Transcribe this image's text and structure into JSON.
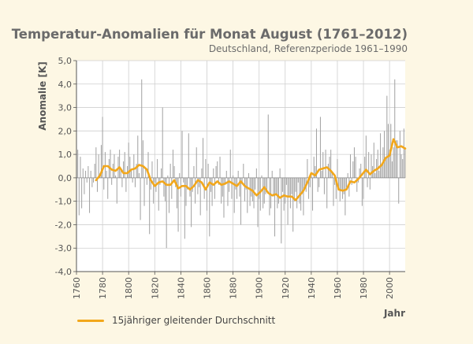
{
  "chart_data": {
    "type": "bar",
    "title": "Temperatur-Anomalien für Monat August (1761–2012)",
    "subtitle": "Deutschland, Referenzperiode 1961–1990",
    "ylabel": "Anomalie [K]",
    "xlabel": "Jahr",
    "ylim": [
      -4.0,
      5.0
    ],
    "xlim": [
      1760,
      2012
    ],
    "y_ticks": [
      "-4,0",
      "-3,0",
      "-2,0",
      "-1,0",
      "0,0",
      "1,0",
      "2,0",
      "3,0",
      "4,0",
      "5,0"
    ],
    "x_ticks": [
      "1760",
      "1780",
      "1800",
      "1820",
      "1840",
      "1860",
      "1880",
      "1900",
      "1920",
      "1940",
      "1960",
      "1980",
      "2000"
    ],
    "grid": true,
    "legend_position": "bottom-left",
    "colors": {
      "bars": "#a3a3a3",
      "average_line": "#f2a71b",
      "grid": "#cfcfcf",
      "axis": "#555555"
    },
    "series": [
      {
        "type": "bar",
        "x": [
          1761,
          1762,
          1763,
          1764,
          1765,
          1766,
          1767,
          1768,
          1769,
          1770,
          1771,
          1772,
          1773,
          1774,
          1775,
          1776,
          1777,
          1778,
          1779,
          1780,
          1781,
          1782,
          1783,
          1784,
          1785,
          1786,
          1787,
          1788,
          1789,
          1790,
          1791,
          1792,
          1793,
          1794,
          1795,
          1796,
          1797,
          1798,
          1799,
          1800,
          1801,
          1802,
          1803,
          1804,
          1805,
          1806,
          1807,
          1808,
          1809,
          1810,
          1811,
          1812,
          1813,
          1814,
          1815,
          1816,
          1817,
          1818,
          1819,
          1820,
          1821,
          1822,
          1823,
          1824,
          1825,
          1826,
          1827,
          1828,
          1829,
          1830,
          1831,
          1832,
          1833,
          1834,
          1835,
          1836,
          1837,
          1838,
          1839,
          1840,
          1841,
          1842,
          1843,
          1844,
          1845,
          1846,
          1847,
          1848,
          1849,
          1850,
          1851,
          1852,
          1853,
          1854,
          1855,
          1856,
          1857,
          1858,
          1859,
          1860,
          1861,
          1862,
          1863,
          1864,
          1865,
          1866,
          1867,
          1868,
          1869,
          1870,
          1871,
          1872,
          1873,
          1874,
          1875,
          1876,
          1877,
          1878,
          1879,
          1880,
          1881,
          1882,
          1883,
          1884,
          1885,
          1886,
          1887,
          1888,
          1889,
          1890,
          1891,
          1892,
          1893,
          1894,
          1895,
          1896,
          1897,
          1898,
          1899,
          1900,
          1901,
          1902,
          1903,
          1904,
          1905,
          1906,
          1907,
          1908,
          1909,
          1910,
          1911,
          1912,
          1913,
          1914,
          1915,
          1916,
          1917,
          1918,
          1919,
          1920,
          1921,
          1922,
          1923,
          1924,
          1925,
          1926,
          1927,
          1928,
          1929,
          1930,
          1931,
          1932,
          1933,
          1934,
          1935,
          1936,
          1937,
          1938,
          1939,
          1940,
          1941,
          1942,
          1943,
          1944,
          1945,
          1946,
          1947,
          1948,
          1949,
          1950,
          1951,
          1952,
          1953,
          1954,
          1955,
          1956,
          1957,
          1958,
          1959,
          1960,
          1961,
          1962,
          1963,
          1964,
          1965,
          1966,
          1967,
          1968,
          1969,
          1970,
          1971,
          1972,
          1973,
          1974,
          1975,
          1976,
          1977,
          1978,
          1979,
          1980,
          1981,
          1982,
          1983,
          1984,
          1985,
          1986,
          1987,
          1988,
          1989,
          1990,
          1991,
          1992,
          1993,
          1994,
          1995,
          1996,
          1997,
          1998,
          1999,
          2000,
          2001,
          2002,
          2003,
          2004,
          2005,
          2006,
          2007,
          2008,
          2009,
          2010,
          2011,
          2012
        ],
        "values": [
          1.2,
          -1.6,
          0.9,
          -1.3,
          0.4,
          -0.7,
          0.3,
          -0.2,
          0.5,
          -1.5,
          0.3,
          -0.4,
          -0.2,
          0.6,
          1.3,
          -0.6,
          1.0,
          0.2,
          1.4,
          2.6,
          -0.5,
          1.1,
          0.3,
          -0.9,
          0.8,
          1.2,
          -0.3,
          0.6,
          1.0,
          0.1,
          -1.1,
          0.9,
          1.2,
          0.4,
          -0.4,
          0.7,
          1.1,
          -0.6,
          0.5,
          1.5,
          0.9,
          0.3,
          -0.2,
          1.0,
          -0.4,
          0.6,
          1.8,
          0.2,
          -1.8,
          4.2,
          1.6,
          -1.2,
          0.4,
          -0.3,
          1.1,
          -2.4,
          -0.5,
          0.7,
          -1.1,
          -0.2,
          -0.6,
          0.8,
          -1.4,
          -0.3,
          0.4,
          3.0,
          -0.8,
          -1.0,
          -3.0,
          0.1,
          -1.5,
          0.6,
          -0.9,
          1.2,
          0.5,
          -0.4,
          -1.3,
          -2.3,
          0.2,
          -0.8,
          2.0,
          -0.2,
          -2.6,
          -1.2,
          -0.5,
          1.9,
          -0.8,
          -2.1,
          -0.6,
          0.5,
          -1.1,
          1.3,
          -0.7,
          -0.4,
          -1.6,
          0.4,
          1.7,
          -0.9,
          0.8,
          -1.4,
          0.6,
          -2.5,
          -0.6,
          -1.2,
          0.4,
          -0.9,
          0.5,
          0.7,
          -0.3,
          0.9,
          -1.1,
          -0.8,
          -1.7,
          -0.3,
          0.3,
          -1.2,
          -0.6,
          1.2,
          -0.9,
          0.1,
          -1.5,
          -0.5,
          -0.9,
          0.3,
          -0.8,
          -2.0,
          -0.2,
          0.6,
          -1.0,
          -0.5,
          -1.5,
          0.2,
          -1.2,
          -0.8,
          -1.0,
          -1.3,
          -0.5,
          0.4,
          -2.1,
          -0.9,
          -1.4,
          0.1,
          -1.3,
          -1.1,
          -0.7,
          -0.5,
          2.7,
          -1.6,
          -1.3,
          0.3,
          -0.8,
          -2.5,
          -0.7,
          -1.3,
          -1.1,
          0.4,
          -2.8,
          -0.6,
          -1.4,
          -1.1,
          -0.3,
          -2.0,
          -0.8,
          -1.3,
          -0.7,
          -2.3,
          -1.0,
          -0.6,
          -1.3,
          -0.2,
          -1.1,
          -1.4,
          -0.7,
          -1.6,
          -0.4,
          -0.6,
          0.8,
          -0.9,
          -0.4,
          0.2,
          -1.4,
          0.9,
          0.5,
          2.1,
          -0.6,
          -0.4,
          2.6,
          0.3,
          1.1,
          -0.7,
          1.2,
          -1.3,
          0.6,
          0.9,
          1.2,
          0.2,
          -1.2,
          -0.3,
          -0.9,
          0.8,
          -0.4,
          -1.0,
          -0.5,
          -0.9,
          -0.7,
          -1.6,
          -0.4,
          0.2,
          -0.8,
          1.0,
          -0.3,
          0.7,
          1.3,
          0.9,
          -0.6,
          -0.2,
          0.4,
          0.6,
          -1.2,
          -0.9,
          0.9,
          1.8,
          -0.4,
          1.1,
          -0.5,
          1.0,
          0.5,
          1.5,
          0.2,
          0.8,
          1.2,
          0.3,
          1.9,
          0.6,
          1.3,
          2.0,
          0.8,
          3.5,
          2.3,
          1.2,
          2.3,
          0.7,
          1.3,
          4.2,
          1.6,
          1.6,
          -1.1,
          2.0,
          1.0,
          0.8,
          2.1,
          1.3
        ],
        "color": "#a3a3a3"
      },
      {
        "type": "line",
        "name": "15jähriger gleitender Durchschnitt",
        "x": [
          1775,
          1778,
          1781,
          1784,
          1787,
          1790,
          1793,
          1796,
          1799,
          1802,
          1805,
          1808,
          1811,
          1814,
          1817,
          1820,
          1823,
          1826,
          1829,
          1832,
          1835,
          1838,
          1841,
          1844,
          1847,
          1850,
          1853,
          1856,
          1859,
          1862,
          1865,
          1868,
          1871,
          1874,
          1877,
          1880,
          1883,
          1886,
          1889,
          1892,
          1895,
          1898,
          1901,
          1904,
          1907,
          1910,
          1913,
          1916,
          1919,
          1922,
          1925,
          1928,
          1931,
          1934,
          1937,
          1940,
          1943,
          1946,
          1949,
          1952,
          1955,
          1958,
          1961,
          1964,
          1967,
          1970,
          1973,
          1976,
          1979,
          1982,
          1985,
          1988,
          1991,
          1994,
          1997,
          2000,
          2003,
          2006,
          2009,
          2012
        ],
        "values": [
          -0.1,
          0.1,
          0.5,
          0.5,
          0.35,
          0.3,
          0.45,
          0.2,
          0.2,
          0.35,
          0.4,
          0.55,
          0.5,
          0.35,
          -0.1,
          -0.35,
          -0.2,
          -0.15,
          -0.3,
          -0.3,
          -0.1,
          -0.45,
          -0.35,
          -0.35,
          -0.5,
          -0.35,
          -0.1,
          -0.2,
          -0.5,
          -0.2,
          -0.3,
          -0.15,
          -0.3,
          -0.25,
          -0.15,
          -0.25,
          -0.35,
          -0.15,
          -0.35,
          -0.45,
          -0.55,
          -0.75,
          -0.6,
          -0.4,
          -0.65,
          -0.75,
          -0.7,
          -0.85,
          -0.75,
          -0.8,
          -0.8,
          -0.95,
          -0.75,
          -0.55,
          -0.2,
          0.2,
          0.1,
          0.35,
          0.4,
          0.45,
          0.3,
          0.1,
          -0.5,
          -0.55,
          -0.5,
          -0.15,
          -0.2,
          -0.05,
          0.15,
          0.35,
          0.15,
          0.3,
          0.4,
          0.55,
          0.85,
          0.95,
          1.65,
          1.3,
          1.35,
          1.25
        ],
        "color": "#f2a71b"
      }
    ]
  }
}
